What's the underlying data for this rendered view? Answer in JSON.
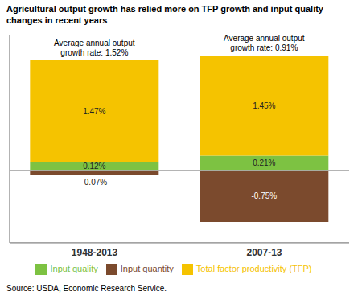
{
  "chart_data": {
    "type": "bar",
    "title": "Agricultural output growth has relied more on TFP growth and input quality changes in recent years",
    "categories": [
      "1948-2013",
      "2007-13"
    ],
    "series": [
      {
        "name": "Input quantity",
        "color": "#7B4A2D",
        "values": [
          -0.07,
          -0.75
        ],
        "value_labels": [
          "-0.07%",
          "-0.75%"
        ]
      },
      {
        "name": "Input quality",
        "color": "#7DC242",
        "values": [
          0.12,
          0.21
        ],
        "value_labels": [
          "0.12%",
          "0.21%"
        ]
      },
      {
        "name": "Total factor productivity (TFP)",
        "color": "#F5C300",
        "values": [
          1.47,
          1.45
        ],
        "value_labels": [
          "1.47%",
          "1.45%"
        ]
      }
    ],
    "annotations": [
      "Average annual output\ngrowth rate: 1.52%",
      "Average annual output\ngrowth rate: 0.91%"
    ],
    "source": "Source:  USDA, Economic Research Service.",
    "ylim": [
      -1.05,
      1.95
    ],
    "stacked": true,
    "data_labels": true,
    "tick_labels": "x",
    "grid": false,
    "legend": "bottom"
  }
}
